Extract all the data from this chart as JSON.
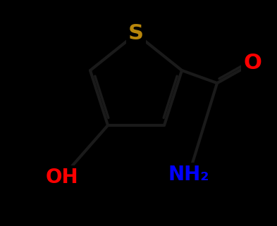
{
  "background_color": "#000000",
  "S_color": "#B8860B",
  "O_color": "#FF0000",
  "N_color": "#0000FF",
  "bond_color": "#000000",
  "bond_width": 3.0,
  "S_label": "S",
  "O_label": "O",
  "OH_label": "OH",
  "NH2_label": "NH₂",
  "S_fontsize": 22,
  "O_fontsize": 22,
  "OH_fontsize": 20,
  "NH2_fontsize": 20,
  "figwidth": 3.93,
  "figheight": 3.21,
  "dpi": 100
}
